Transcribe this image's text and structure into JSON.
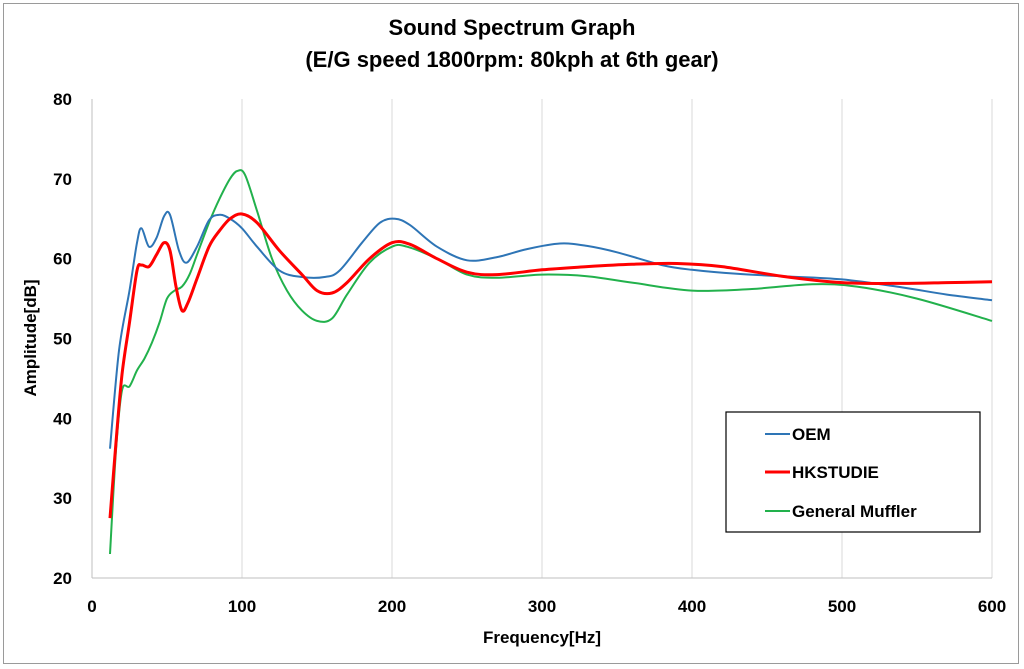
{
  "chart_data": {
    "type": "line",
    "title": "Sound Spectrum Graph",
    "subtitle": "(E/G speed 1800rpm: 80kph at 6th gear)",
    "xlabel": "Frequency[Hz]",
    "ylabel": "Amplitude[dB]",
    "xlim": [
      0,
      600
    ],
    "ylim": [
      20,
      80
    ],
    "xticks": [
      0,
      100,
      200,
      300,
      400,
      500,
      600
    ],
    "yticks": [
      20,
      30,
      40,
      50,
      60,
      70,
      80
    ],
    "grid": "vertical",
    "legend_position": "bottom-right",
    "series": [
      {
        "name": "OEM",
        "color": "#2E75B6",
        "x": [
          12,
          18,
          25,
          30,
          33,
          38,
          43,
          48,
          52,
          58,
          63,
          70,
          78,
          85,
          92,
          100,
          110,
          125,
          140,
          155,
          165,
          180,
          192,
          202,
          212,
          230,
          250,
          270,
          290,
          312,
          330,
          350,
          380,
          400,
          430,
          460,
          500,
          540,
          570,
          600
        ],
        "values": [
          36.2,
          48.5,
          56.0,
          62.0,
          63.8,
          61.5,
          62.6,
          65.3,
          65.5,
          61.0,
          59.5,
          61.5,
          64.8,
          65.5,
          65.0,
          63.8,
          61.5,
          58.5,
          57.7,
          57.7,
          58.5,
          62.0,
          64.5,
          65.0,
          64.2,
          61.5,
          59.8,
          60.2,
          61.2,
          61.9,
          61.6,
          60.8,
          59.2,
          58.6,
          58.1,
          57.8,
          57.4,
          56.4,
          55.5,
          54.8
        ]
      },
      {
        "name": "HKSTUDIE",
        "color": "#FF0000",
        "x": [
          12,
          16,
          20,
          25,
          30,
          33,
          38,
          43,
          48,
          52,
          56,
          60,
          64,
          70,
          78,
          85,
          92,
          100,
          110,
          125,
          140,
          150,
          160,
          170,
          185,
          200,
          212,
          230,
          250,
          270,
          300,
          330,
          360,
          390,
          420,
          460,
          500,
          540,
          570,
          600
        ],
        "values": [
          27.5,
          37.0,
          45.5,
          52.0,
          58.5,
          59.2,
          59.0,
          60.5,
          62.0,
          61.0,
          56.5,
          53.5,
          54.5,
          57.5,
          61.5,
          63.5,
          65.0,
          65.6,
          64.5,
          61.0,
          58.0,
          56.0,
          55.7,
          57.0,
          60.0,
          62.0,
          61.8,
          60.0,
          58.3,
          58.0,
          58.6,
          59.0,
          59.3,
          59.4,
          59.0,
          57.8,
          57.0,
          56.9,
          57.0,
          57.1
        ]
      },
      {
        "name": "General Muffler",
        "color": "#22B14C",
        "x": [
          12,
          16,
          20,
          25,
          30,
          35,
          40,
          45,
          50,
          55,
          60,
          65,
          70,
          78,
          85,
          92,
          97,
          102,
          110,
          120,
          130,
          140,
          150,
          160,
          170,
          185,
          200,
          210,
          230,
          250,
          270,
          300,
          330,
          360,
          400,
          440,
          480,
          510,
          550,
          600
        ],
        "values": [
          23.0,
          36.0,
          43.5,
          44.0,
          46.0,
          47.5,
          49.5,
          52.0,
          55.0,
          56.0,
          56.5,
          58.0,
          60.5,
          64.5,
          67.5,
          70.0,
          71.0,
          70.5,
          66.0,
          60.0,
          56.0,
          53.5,
          52.2,
          52.5,
          55.5,
          59.5,
          61.5,
          61.5,
          60.0,
          58.0,
          57.6,
          58.0,
          57.8,
          57.0,
          56.0,
          56.2,
          56.8,
          56.5,
          55.0,
          52.2
        ]
      }
    ]
  }
}
